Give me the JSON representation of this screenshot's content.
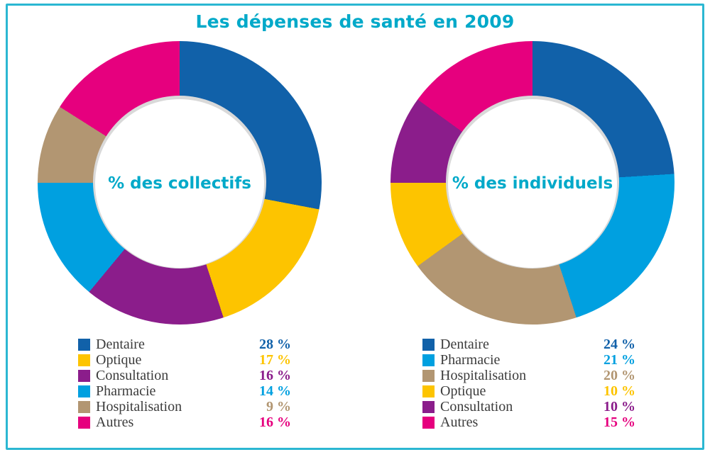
{
  "title": "Les dépenses de santé en 2009",
  "frame": {
    "border_color": "#2bb7d2"
  },
  "accent": {
    "heading_color": "#00a9c9"
  },
  "palette": {
    "dentaire": "#1161a9",
    "optique": "#fdc400",
    "consultation": "#8b1d8b",
    "pharmacie": "#00a0e0",
    "hospitalisation": "#b29672",
    "autres": "#e6007e"
  },
  "chart_data": [
    {
      "type": "pie",
      "donut": true,
      "center_label": "% des collectifs",
      "categories": [
        "Dentaire",
        "Optique",
        "Consultation",
        "Pharmacie",
        "Hospitalisation",
        "Autres"
      ],
      "values": [
        28,
        17,
        16,
        14,
        9,
        16
      ],
      "unit": "%",
      "color_keys": [
        "dentaire",
        "optique",
        "consultation",
        "pharmacie",
        "hospitalisation",
        "autres"
      ],
      "start_angle_deg": 0,
      "direction": "clockwise",
      "legend_position": "bottom"
    },
    {
      "type": "pie",
      "donut": true,
      "center_label": "% des individuels",
      "categories": [
        "Dentaire",
        "Pharmacie",
        "Hospitalisation",
        "Optique",
        "Consultation",
        "Autres"
      ],
      "values": [
        24,
        21,
        20,
        10,
        10,
        15
      ],
      "unit": "%",
      "color_keys": [
        "dentaire",
        "pharmacie",
        "hospitalisation",
        "optique",
        "consultation",
        "autres"
      ],
      "start_angle_deg": 0,
      "direction": "clockwise",
      "legend_position": "bottom"
    }
  ]
}
